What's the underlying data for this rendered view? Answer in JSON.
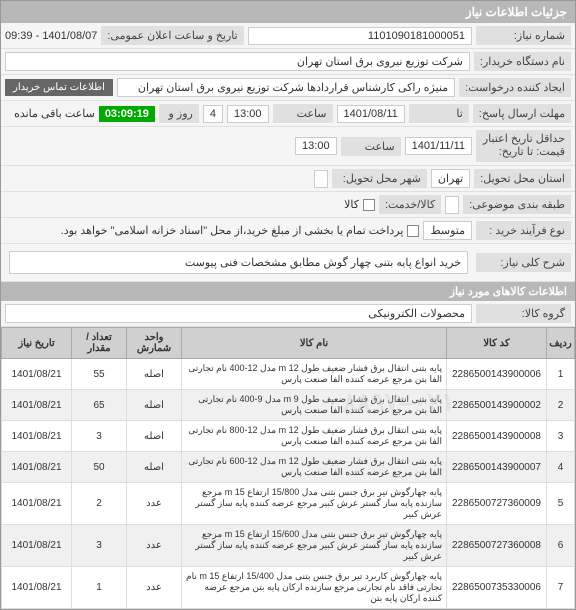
{
  "header": "جزئیات اطلاعات نیاز",
  "fields": {
    "req_no_label": "شماره نیاز:",
    "req_no": "1101090181000051",
    "pub_date_label": "تاریخ و ساعت اعلان عمومی:",
    "pub_date": "1401/08/07 - 09:39",
    "buyer_label": "نام دستگاه خریدار:",
    "buyer": "شرکت توزیع نیروی برق استان تهران",
    "creator_label": "ایجاد کننده درخواست:",
    "creator": "منیژه راکی کارشناس قراردادها شرکت توزیع نیروی برق استان تهران",
    "contact_btn": "اطلاعات تماس خریدار",
    "deadline_label": "مهلت ارسال پاسخ:",
    "deadline_to": "تا",
    "deadline_date": "1401/08/11",
    "time_label": "ساعت",
    "deadline_time": "13:00",
    "day_label": "روز و",
    "days": "4",
    "countdown": "03:09:19",
    "remain": "ساعت باقی مانده",
    "validity_label": "حداقل تاریخ اعتبار",
    "validity_sub": "قیمت: تا تاریخ:",
    "validity_date": "1401/11/11",
    "validity_time": "13:00",
    "state_label": "استان محل تحویل:",
    "state": "تهران",
    "city_label": "شهر محل تحویل:",
    "city": "",
    "budget_label": "طبقه بندی موضوعی:",
    "gs_label": "کالا/خدمت:",
    "goods": "کالا",
    "process_label": "نوع فرآیند خرید :",
    "process": "متوسط",
    "partial_label": "پرداخت تمام یا بخشی از مبلغ خرید،از محل \"اسناد خزانه اسلامی\" خواهد بود.",
    "desc_label": "شرح کلی نیاز:",
    "desc": "خرید انواع پایه بتنی چهار گوش مطابق مشخصات فنی پیوست"
  },
  "items_header": "اطلاعات کالاهای مورد نیاز",
  "group_label": "گروه کالا:",
  "group": "محصولات الکترونیکی",
  "columns": {
    "row": "ردیف",
    "code": "کد کالا",
    "name": "نام کالا",
    "unit": "واحد شمارش",
    "qty": "تعداد / مقدار",
    "date": "تاریخ نیاز"
  },
  "rows": [
    {
      "n": "1",
      "code": "2286500143900006",
      "name": "پایه بتنی انتقال برق فشار ضعیف طول 12 m مدل 12-400 نام تجارتی الفا بتن مرجع عرضه کننده الفا صنعت پارس",
      "unit": "اصله",
      "qty": "55",
      "date": "1401/08/21"
    },
    {
      "n": "2",
      "code": "2286500143900002",
      "name": "پایه بتنی انتقال برق فشار ضعیف طول 9 m مدل 9-400 نام تجارتی الفا بتن مرجع عرضه کننده الفا صنعت پارس",
      "unit": "اصله",
      "qty": "65",
      "date": "1401/08/21"
    },
    {
      "n": "3",
      "code": "2286500143900008",
      "name": "پایه بتنی انتقال برق فشار ضعیف طول 12 m مدل 12-800 نام تجارتی الفا بتن مرجع عرضه کننده الفا صنعت پارس",
      "unit": "اصله",
      "qty": "3",
      "date": "1401/08/21"
    },
    {
      "n": "4",
      "code": "2286500143900007",
      "name": "پایه بتنی انتقال برق فشار ضعیف طول 12 m مدل 12-600 نام تجارتی الفا بتن مرجع عرضه کننده الفا صنعت پارس",
      "unit": "اصله",
      "qty": "50",
      "date": "1401/08/21"
    },
    {
      "n": "5",
      "code": "2286500727360009",
      "name": "پایه چهارگوش تیر برق جنس بتنی مدل 15/800 ارتفاع 15 m مرجع سازنده پایه ساز گستر عرش کبیر مرجع عرضه کننده پایه ساز گستر عرش کبیر",
      "unit": "عدد",
      "qty": "2",
      "date": "1401/08/21"
    },
    {
      "n": "6",
      "code": "2286500727360008",
      "name": "پایه چهارگوش تیر برق جنس بتنی مدل 15/600 ارتفاع 15 m مرجع سازنده پایه ساز گستر عرش کبیر مرجع عرضه کننده پایه ساز گستر عرش کبیر",
      "unit": "عدد",
      "qty": "3",
      "date": "1401/08/21"
    },
    {
      "n": "7",
      "code": "2286500735330006",
      "name": "پایه چهارگوش کاربرد تیر برق جنس بتنی مدل 15/400 ارتفاع 15 m نام تجارتی فاقد نام تجارتی مرجع سازنده ارکان پایه بتن مرجع عرضه کننده ارکان پایه بتن",
      "unit": "عدد",
      "qty": "1",
      "date": "1401/08/21"
    }
  ]
}
